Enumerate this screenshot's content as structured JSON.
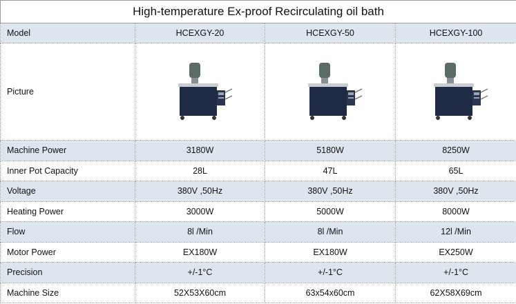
{
  "table": {
    "title": "High-temperature Ex-proof Recirculating oil bath",
    "header": [
      "Model",
      "HCEXGY-20",
      "HCEXGY-50",
      "HCEXGY-100"
    ],
    "picture_label": "Picture",
    "rows": [
      [
        "Machine Power",
        "3180W",
        "5180W",
        "8250W"
      ],
      [
        "Inner Pot Capacity",
        "28L",
        "47L",
        "65L"
      ],
      [
        "Voltage",
        "380V ,50Hz",
        "380V ,50Hz",
        "380V ,50Hz"
      ],
      [
        "Heating Power",
        "3000W",
        "5000W",
        "8000W"
      ],
      [
        "Flow",
        "8l /Min",
        "8l /Min",
        "12l /Min"
      ],
      [
        "Motor Power",
        "EX180W",
        "EX180W",
        "EX250W"
      ],
      [
        "Precision",
        "+/-1°C",
        "+/-1°C",
        "+/-1°C"
      ],
      [
        "Machine Size",
        "52X53X60cm",
        "63x54x60cm",
        "62X58X69cm"
      ]
    ]
  }
}
